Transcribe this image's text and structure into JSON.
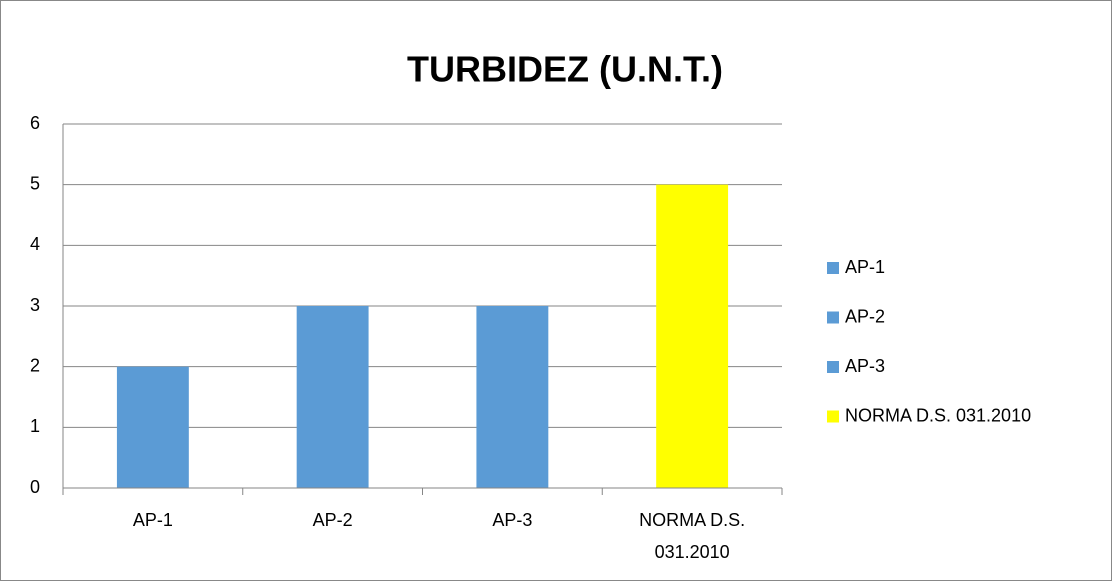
{
  "chart_data": {
    "type": "bar",
    "title": "TURBIDEZ (U.N.T.)",
    "categories": [
      "AP-1",
      "AP-2",
      "AP-3",
      "NORMA D.S. 031.2010"
    ],
    "values": [
      2,
      3,
      3,
      5
    ],
    "colors": [
      "#5b9bd5",
      "#5b9bd5",
      "#5b9bd5",
      "#ffff00"
    ],
    "ylim": [
      0,
      6
    ],
    "yticks": [
      0,
      1,
      2,
      3,
      4,
      5,
      6
    ],
    "grid": true,
    "legend": "right"
  }
}
